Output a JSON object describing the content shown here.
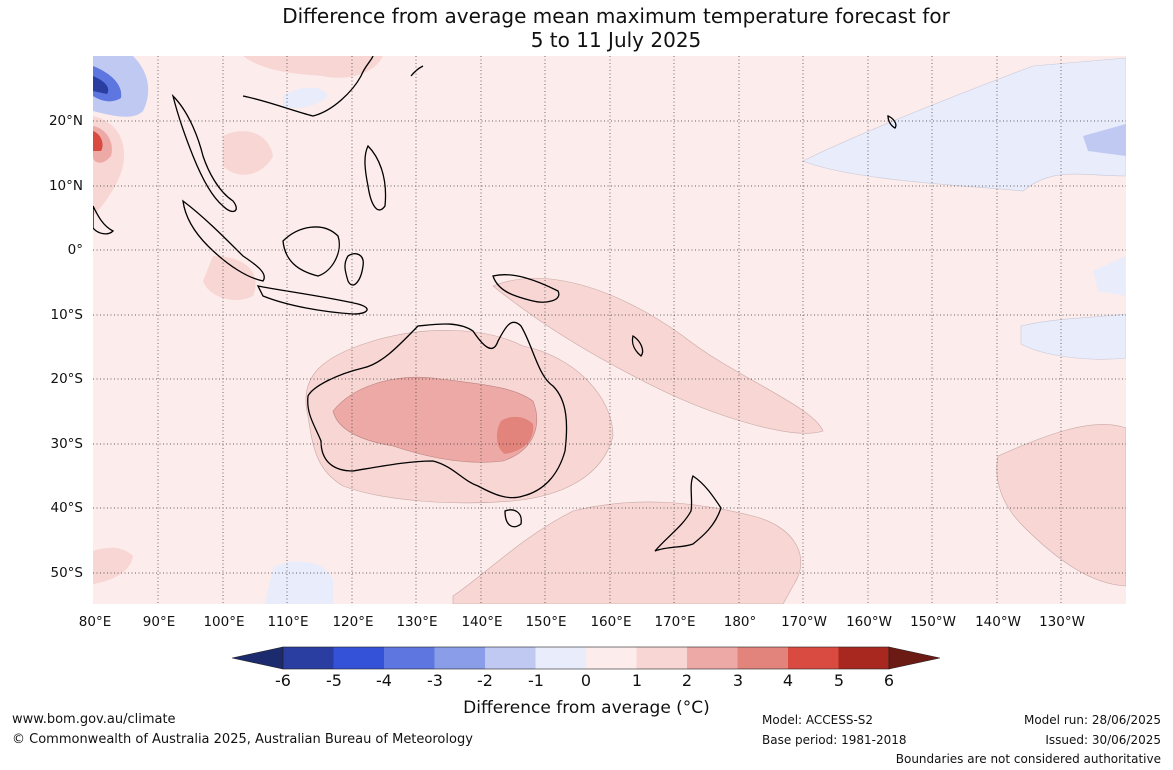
{
  "title": {
    "line1": "Difference from average mean maximum temperature forecast for",
    "line2": "5 to 11 July 2025"
  },
  "map": {
    "lon_labels": [
      "80°E",
      "90°E",
      "100°E",
      "110°E",
      "120°E",
      "130°E",
      "140°E",
      "150°E",
      "160°E",
      "170°E",
      "180°",
      "170°W",
      "160°W",
      "150°W",
      "140°W",
      "130°W"
    ],
    "lat_labels": [
      "20°N",
      "10°N",
      "0°",
      "10°S",
      "20°S",
      "30°S",
      "40°S",
      "50°S"
    ],
    "lon_range": [
      80,
      240
    ],
    "lat_range": [
      -55,
      30
    ]
  },
  "colorbar": {
    "ticks": [
      "-6",
      "-5",
      "-4",
      "-3",
      "-2",
      "-1",
      "0",
      "1",
      "2",
      "3",
      "4",
      "5",
      "6"
    ],
    "below_color": "#1c2a6e",
    "colors": [
      "#2a3da0",
      "#3452d8",
      "#5d76e0",
      "#8a9de8",
      "#c0c9f2",
      "#e8ecfb",
      "#fceceb",
      "#f7d6d4",
      "#eda9a5",
      "#e2837c",
      "#d94a40",
      "#a8281f"
    ],
    "above_color": "#6b1a14",
    "label": "Difference from average (°C)"
  },
  "footer": {
    "website": "www.bom.gov.au/climate",
    "copyright": "© Commonwealth of Australia 2025, Australian Bureau of Meteorology",
    "model": "Model: ACCESS-S2",
    "base_period": "Base period: 1981-2018",
    "model_run": "Model run: 28/06/2025",
    "issued": "Issued: 30/06/2025",
    "disclaimer": "Boundaries are not considered authoritative"
  }
}
